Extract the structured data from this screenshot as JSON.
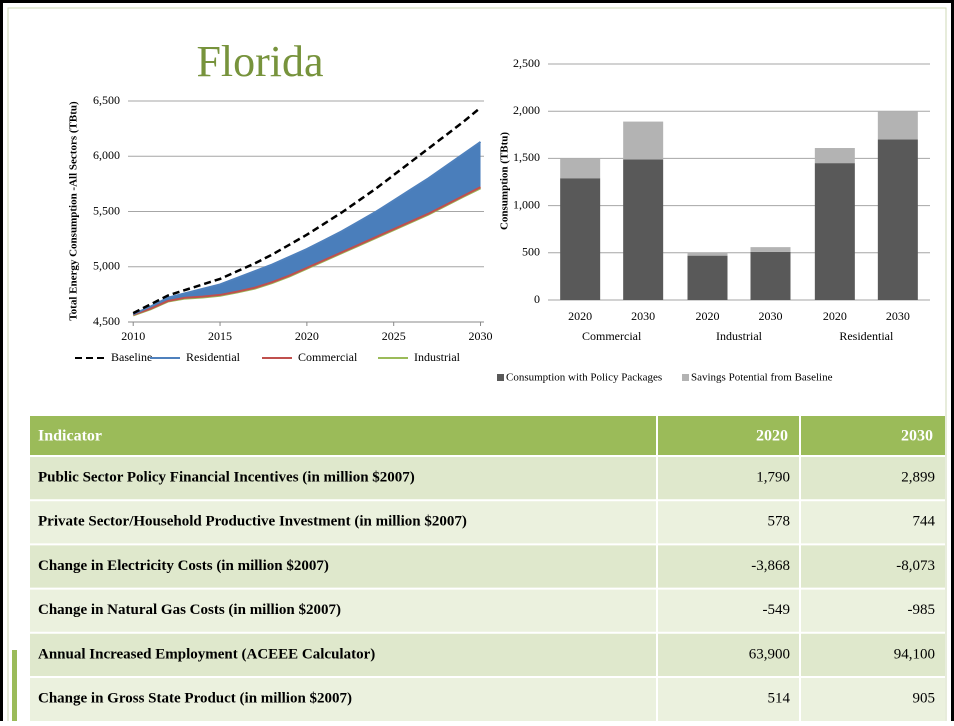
{
  "title": "Florida",
  "chart_data": [
    {
      "type": "area",
      "y_label": "Total Energy Consumption -All Sectors  (TBtu)",
      "x": [
        2010,
        2011,
        2012,
        2013,
        2014,
        2015,
        2016,
        2017,
        2018,
        2019,
        2020,
        2021,
        2022,
        2023,
        2024,
        2025,
        2026,
        2027,
        2028,
        2029,
        2030
      ],
      "series": [
        {
          "name": "Baseline",
          "color": "#000000",
          "dashed": true,
          "values": [
            4580,
            4660,
            4740,
            4790,
            4840,
            4890,
            4960,
            5030,
            5110,
            5200,
            5290,
            5390,
            5490,
            5600,
            5710,
            5830,
            5950,
            6070,
            6190,
            6310,
            6440
          ]
        },
        {
          "name": "Residential",
          "color": "#4f81bd",
          "fill": "#4a7ebb",
          "values": [
            4570,
            4640,
            4720,
            4760,
            4800,
            4840,
            4900,
            4960,
            5020,
            5090,
            5160,
            5240,
            5320,
            5410,
            5500,
            5600,
            5700,
            5800,
            5910,
            6020,
            6130
          ]
        },
        {
          "name": "Commercial",
          "color": "#c0504d",
          "fill": "#d9534f",
          "values": [
            4565,
            4620,
            4690,
            4720,
            4730,
            4745,
            4775,
            4810,
            4860,
            4920,
            4990,
            5060,
            5130,
            5200,
            5270,
            5340,
            5410,
            5480,
            5560,
            5640,
            5720
          ]
        },
        {
          "name": "Industrial",
          "color": "#9bbb59",
          "values": [
            4560,
            4615,
            4685,
            4712,
            4722,
            4738,
            4768,
            4802,
            4852,
            4912,
            4982,
            5052,
            5122,
            5192,
            5262,
            5332,
            5402,
            5472,
            5552,
            5632,
            5710
          ]
        }
      ],
      "xlim": [
        2009.7,
        2030.2
      ],
      "xticks": [
        2010,
        2015,
        2020,
        2025,
        2030
      ],
      "ylim": [
        4500,
        6500
      ],
      "yticks": [
        {
          "value": 4500,
          "label": "4,500"
        },
        {
          "value": 5000,
          "label": "5,000"
        },
        {
          "value": 5500,
          "label": "5,500"
        },
        {
          "value": 6000,
          "label": "6,000"
        },
        {
          "value": 6500,
          "label": "6,500"
        }
      ],
      "grid": true
    },
    {
      "type": "stacked_bar",
      "y_label": "Consumption (TBtu)",
      "categories": [
        "2020",
        "2030",
        "2020",
        "2030",
        "2020",
        "2030"
      ],
      "groups": [
        "Commercial",
        "Industrial",
        "Residential"
      ],
      "series": [
        {
          "name": "Consumption with Policy Packages",
          "color": "#595959",
          "values": [
            1290,
            1490,
            470,
            510,
            1450,
            1700
          ]
        },
        {
          "name": "Savings Potential from Baseline",
          "color": "#b3b3b3",
          "values": [
            210,
            400,
            30,
            50,
            160,
            300
          ]
        }
      ],
      "ylim": [
        0,
        2500
      ],
      "yticks": [
        0,
        500,
        {
          "value": 1000,
          "label": "1,000"
        },
        {
          "value": 1500,
          "label": "1,500"
        },
        {
          "value": 2000,
          "label": "2,000"
        },
        {
          "value": 2500,
          "label": "2,500"
        }
      ],
      "grid": true
    }
  ],
  "table": {
    "header": [
      "Indicator",
      "2020",
      "2030"
    ],
    "rows": [
      [
        "Public Sector Policy Financial Incentives (in million $2007)",
        "1,790",
        "2,899"
      ],
      [
        "Private Sector/Household Productive Investment (in million $2007)",
        "578",
        "744"
      ],
      [
        "Change in Electricity Costs (in million $2007)",
        "-3,868",
        "-8,073"
      ],
      [
        "Change in Natural Gas Costs (in million $2007)",
        "-549",
        "-985"
      ],
      [
        "Annual Increased Employment (ACEEE Calculator)",
        "63,900",
        "94,100"
      ],
      [
        "Change in Gross State Product (in million $2007)",
        "514",
        "905"
      ]
    ]
  }
}
